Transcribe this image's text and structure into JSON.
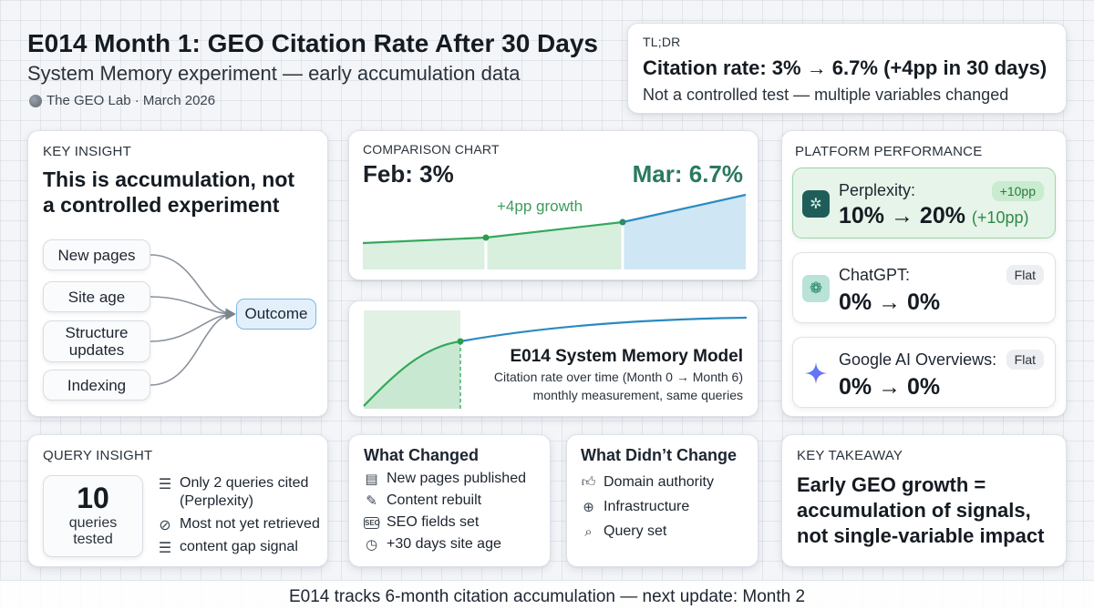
{
  "header": {
    "title": "E014 Month 1: GEO Citation Rate After 30 Days",
    "subtitle": "System Memory experiment — early accumulation data",
    "meta": "The GEO Lab · March 2026"
  },
  "tldr": {
    "label": "TL;DR",
    "headline": "Citation rate: 3% → 6.7% (+4pp in 30 days)",
    "note": "Not a controlled test — multiple variables changed"
  },
  "key_insight": {
    "label": "KEY INSIGHT",
    "headline_line1": "This is accumulation, not",
    "headline_line2": "a controlled experiment",
    "factors": [
      "New pages",
      "Site age",
      "Structure updates",
      "Indexing"
    ],
    "factor_lines": {
      "structure_1": "Structure",
      "structure_2": "updates"
    },
    "outcome": "Outcome"
  },
  "comparison": {
    "label": "COMPARISON CHART",
    "feb_label": "Feb: 3%",
    "mar_label": "Mar: 6.7%",
    "growth_label": "+4pp growth",
    "colors": {
      "line": "#35a85c",
      "fill": "#dbf0e0",
      "projection_line": "#2b8ac0",
      "projection_fill": "#cfe6f4"
    }
  },
  "model": {
    "title": "E014 System Memory Model",
    "line1": "Citation rate over time (Month 0 → Month 6)",
    "line2": "monthly measurement, same queries"
  },
  "platforms": {
    "label": "PLATFORM PERFORMANCE",
    "items": [
      {
        "name": "Perplexity:",
        "values": "10% → 20%",
        "delta": "(+10pp)",
        "badge": "+10pp",
        "icon": "perplexity-icon"
      },
      {
        "name": "ChatGPT:",
        "values": "0% → 0%",
        "badge": "Flat",
        "icon": "chatgpt-icon"
      },
      {
        "name": "Google AI Overviews:",
        "values": "0% → 0%",
        "badge": "Flat",
        "icon": "gemini-sparkle-icon"
      }
    ]
  },
  "query_insight": {
    "label": "QUERY INSIGHT",
    "count": "10",
    "count_label_1": "queries",
    "count_label_2": "tested",
    "lines": [
      "Only 2 queries cited",
      "(Perplexity)",
      "Most not yet retrieved",
      "content gap signal"
    ]
  },
  "what_changed": {
    "title": "What Changed",
    "items": [
      "New pages published",
      "Content rebuilt",
      "SEO fields set",
      "+30 days site age"
    ]
  },
  "what_didnt": {
    "title": "What Didn’t Change",
    "items": [
      "Domain authority",
      "Infrastructure",
      "Query set"
    ]
  },
  "takeaway": {
    "label": "KEY TAKEAWAY",
    "line1": "Early GEO growth =",
    "line2": "accumulation of signals,",
    "line3": "not single-variable impact"
  },
  "footer": "E014 tracks 6-month citation accumulation — next update: Month 2"
}
